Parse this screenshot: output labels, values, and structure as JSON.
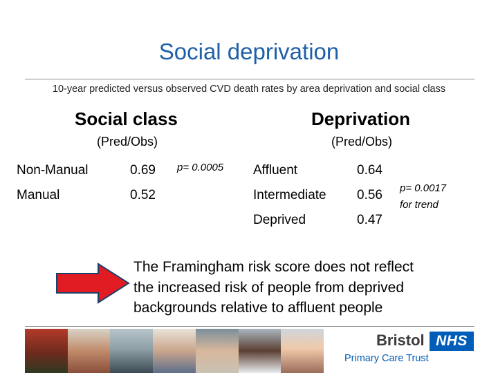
{
  "slide": {
    "title": "Social deprivation",
    "subtitle": "10-year predicted versus observed CVD death rates by area deprivation and social class"
  },
  "social_class": {
    "heading": "Social class",
    "subheading": "(Pred/Obs)",
    "rows": [
      {
        "label": "Non-Manual",
        "value": "0.69"
      },
      {
        "label": "Manual",
        "value": "0.52"
      }
    ],
    "p_value": "p= 0.0005"
  },
  "deprivation": {
    "heading": "Deprivation",
    "subheading": "(Pred/Obs)",
    "rows": [
      {
        "label": "Affluent",
        "value": "0.64"
      },
      {
        "label": "Intermediate",
        "value": "0.56"
      },
      {
        "label": "Deprived",
        "value": "0.47"
      }
    ],
    "p_value": "p= 0.0017",
    "p_note": "for trend"
  },
  "arrow": {
    "color": "#e11b22",
    "border_color": "#1f3f6b"
  },
  "message": {
    "lines": [
      "The Framingham risk score does not reflect",
      "the increased risk of people from deprived",
      "backgrounds relative to affluent people"
    ]
  },
  "footer": {
    "logo_word": "Bristol",
    "logo_badge": "NHS",
    "logo_org": "Primary Care Trust",
    "photo_icons": [
      "child-photo-icon",
      "family-photo-icon",
      "staff-photo-icon",
      "boy-photo-icon",
      "teen-photo-icon",
      "nurse-photo-icon",
      "patient-photo-icon"
    ]
  },
  "colors": {
    "title": "#1f5fa8",
    "nhs_blue": "#005eb8"
  }
}
